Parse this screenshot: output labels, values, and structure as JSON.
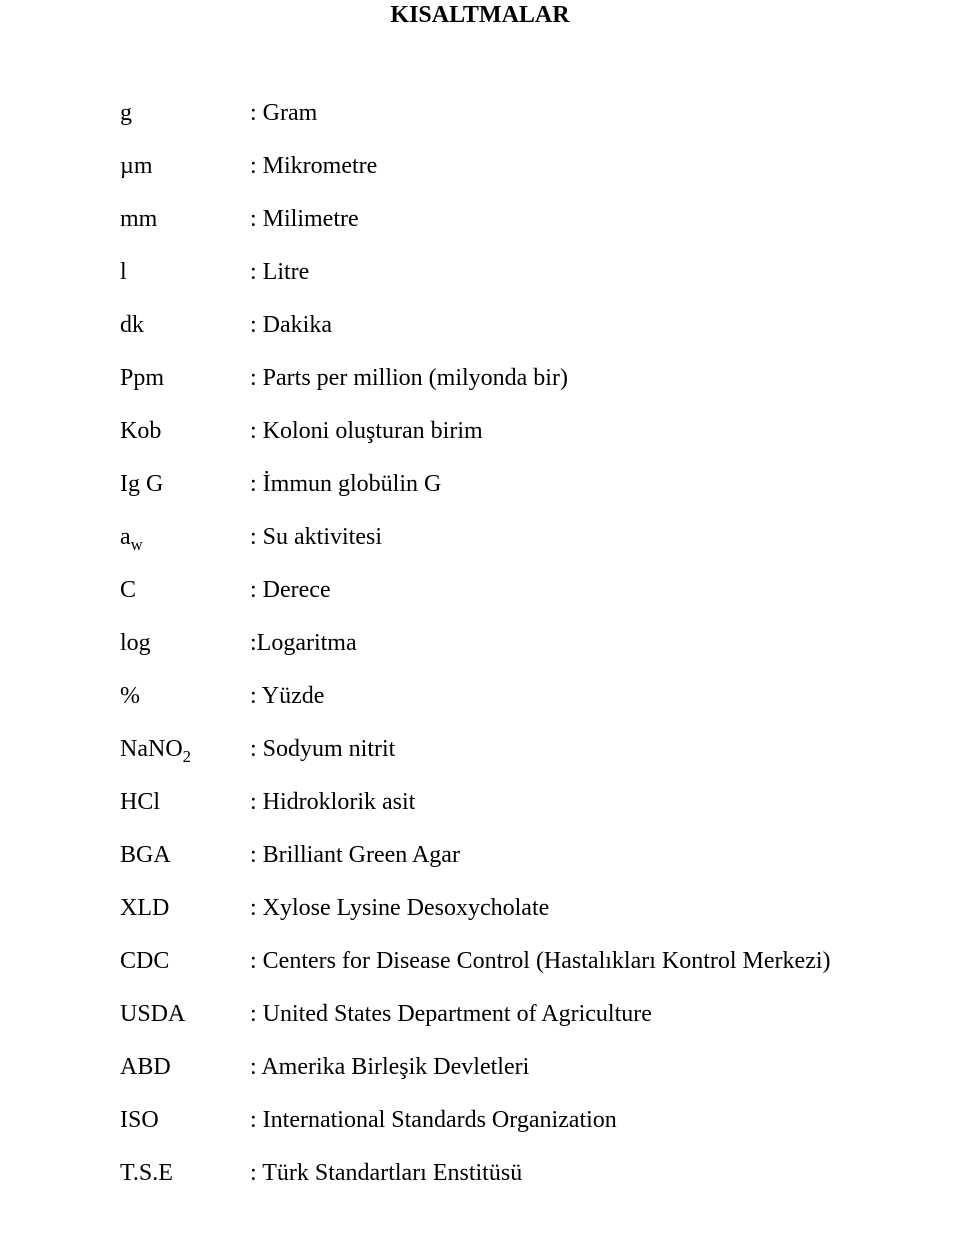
{
  "title": "KISALTMALAR",
  "font_family": "Times New Roman",
  "title_fontsize": 24,
  "body_fontsize": 24,
  "text_color": "#000000",
  "background_color": "#ffffff",
  "rows": [
    {
      "abbr": "g",
      "def": ": Gram"
    },
    {
      "abbr": "µm",
      "def": ": Mikrometre"
    },
    {
      "abbr": "mm",
      "def": ": Milimetre"
    },
    {
      "abbr": "l",
      "def": ": Litre"
    },
    {
      "abbr": "dk",
      "def": ": Dakika"
    },
    {
      "abbr": "Ppm",
      "def": ": Parts per million (milyonda bir)"
    },
    {
      "abbr": "Kob",
      "def": ": Koloni oluşturan birim"
    },
    {
      "abbr": "Ig G",
      "def": ": İmmun globülin G"
    },
    {
      "abbr": "a_w",
      "def": " : Su aktivitesi",
      "abbr_has_sub": true
    },
    {
      "abbr": "C",
      "def": ": Derece"
    },
    {
      "abbr": "log",
      "def": ":Logaritma"
    },
    {
      "abbr": "%",
      "def": ": Yüzde"
    },
    {
      "abbr": "NaNO_2",
      "def": ": Sodyum nitrit",
      "abbr_has_sub": true
    },
    {
      "abbr": "HCl",
      "def": ": Hidroklorik asit"
    },
    {
      "abbr": "BGA",
      "def": ": Brilliant Green Agar"
    },
    {
      "abbr": "XLD",
      "def": ": Xylose Lysine Desoxycholate"
    },
    {
      "abbr": "CDC",
      "def": ": Centers for Disease Control (Hastalıkları Kontrol Merkezi)"
    },
    {
      "abbr": "USDA",
      "def": ": United States Department of Agriculture"
    },
    {
      "abbr": "ABD",
      "def": ": Amerika Birleşik Devletleri"
    },
    {
      "abbr": "ISO",
      "def": ": International Standards Organization"
    },
    {
      "abbr": "T.S.E",
      "def": ": Türk Standartları Enstitüsü"
    }
  ]
}
